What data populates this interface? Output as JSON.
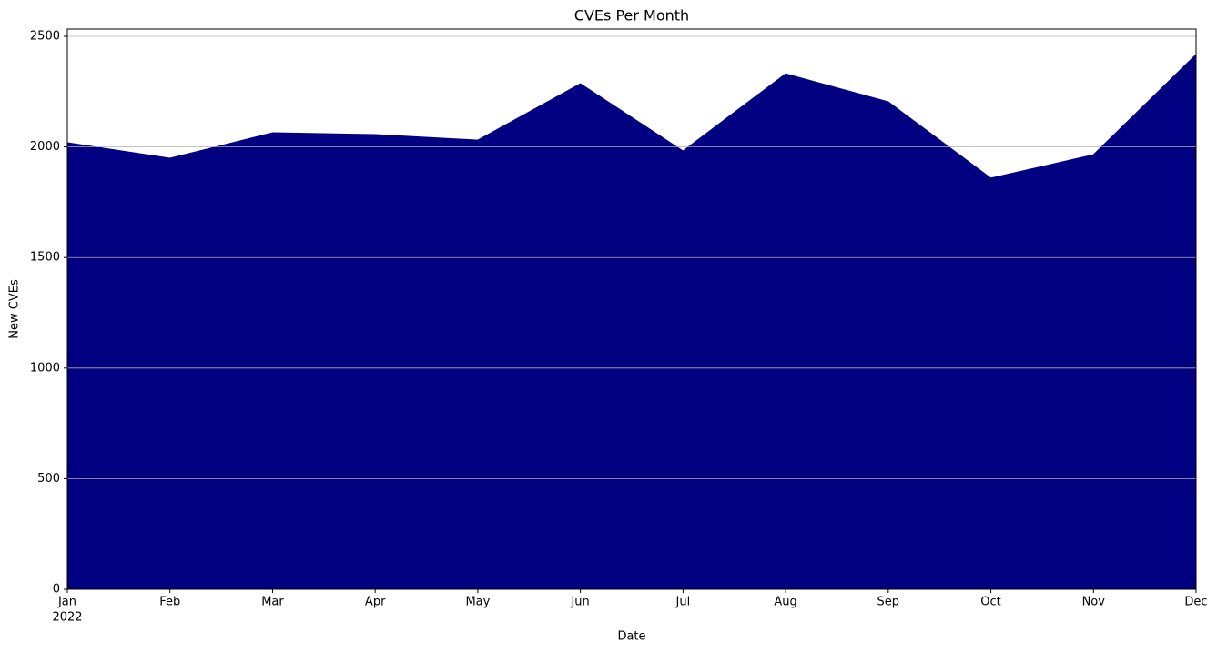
{
  "chart_data": {
    "type": "area",
    "title": "CVEs Per Month",
    "xlabel": "Date",
    "ylabel": "New CVEs",
    "categories": [
      "Jan",
      "Feb",
      "Mar",
      "Apr",
      "May",
      "Jun",
      "Jul",
      "Aug",
      "Sep",
      "Oct",
      "Nov",
      "Dec"
    ],
    "year_label": "2022",
    "values": [
      2019,
      1949,
      2064,
      2056,
      2031,
      2286,
      1982,
      2331,
      2204,
      1859,
      1965,
      2418
    ],
    "color": "#000080",
    "ylim": [
      0,
      2533
    ],
    "yticks": [
      0,
      500,
      1000,
      1500,
      2000,
      2500
    ],
    "grid": true
  }
}
